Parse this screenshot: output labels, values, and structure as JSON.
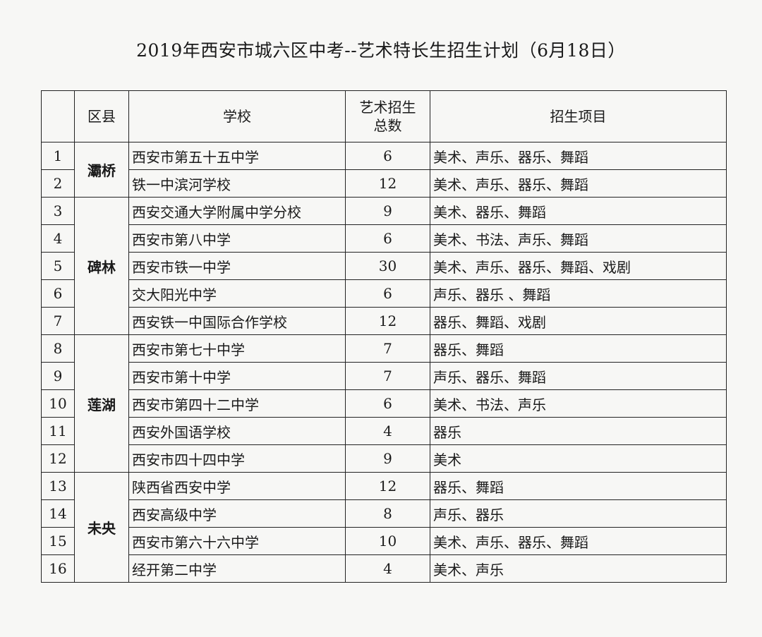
{
  "title": "2019年西安市城六区中考--艺术特长生招生计划（6月18日）",
  "headers": {
    "num": "",
    "district": "区县",
    "school": "学校",
    "count_line1": "艺术招生",
    "count_line2": "总数",
    "items": "招生项目"
  },
  "districts": [
    "灞桥",
    "碑林",
    "莲湖",
    "未央"
  ],
  "rows": [
    {
      "num": "1",
      "school": "西安市第五十五中学",
      "count": "6",
      "items": "美术、声乐、器乐、舞蹈"
    },
    {
      "num": "2",
      "school": "铁一中滨河学校",
      "count": "12",
      "items": "美术、声乐、器乐、舞蹈"
    },
    {
      "num": "3",
      "school": "西安交通大学附属中学分校",
      "count": "9",
      "items": "美术、器乐、舞蹈"
    },
    {
      "num": "4",
      "school": "西安市第八中学",
      "count": "6",
      "items": "美术、书法、声乐、舞蹈"
    },
    {
      "num": "5",
      "school": "西安市铁一中学",
      "count": "30",
      "items": "美术、声乐、器乐、舞蹈、戏剧"
    },
    {
      "num": "6",
      "school": "交大阳光中学",
      "count": "6",
      "items": "声乐、器乐 、舞蹈"
    },
    {
      "num": "7",
      "school": "西安铁一中国际合作学校",
      "count": "12",
      "items": "器乐、舞蹈、戏剧"
    },
    {
      "num": "8",
      "school": "西安市第七十中学",
      "count": "7",
      "items": "器乐、舞蹈"
    },
    {
      "num": "9",
      "school": "西安市第十中学",
      "count": "7",
      "items": "声乐、器乐、舞蹈"
    },
    {
      "num": "10",
      "school": "西安市第四十二中学",
      "count": "6",
      "items": "美术、书法、声乐"
    },
    {
      "num": "11",
      "school": "西安外国语学校",
      "count": "4",
      "items": "器乐"
    },
    {
      "num": "12",
      "school": "西安市四十四中学",
      "count": "9",
      "items": "美术"
    },
    {
      "num": "13",
      "school": "陕西省西安中学",
      "count": "12",
      "items": "器乐、舞蹈"
    },
    {
      "num": "14",
      "school": "西安高级中学",
      "count": "8",
      "items": "声乐、器乐"
    },
    {
      "num": "15",
      "school": "西安市第六十六中学",
      "count": "10",
      "items": "美术、声乐、器乐、舞蹈"
    },
    {
      "num": "16",
      "school": "经开第二中学",
      "count": "4",
      "items": "美术、声乐"
    }
  ]
}
